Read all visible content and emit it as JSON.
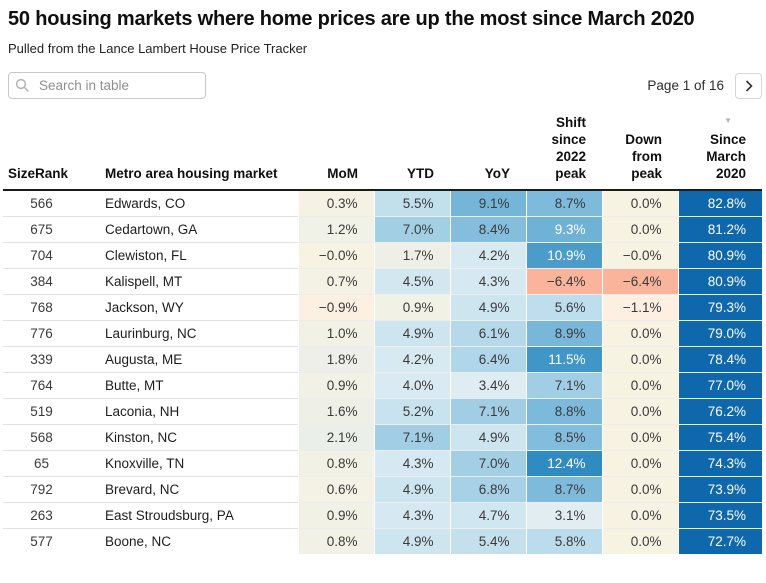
{
  "header": {
    "title": "50 housing markets where home prices are up the most since March 2020",
    "subtitle": "Pulled from the Lance Lambert House Price Tracker"
  },
  "toolbar": {
    "search_placeholder": "Search in table",
    "search_value": "",
    "pagination": "Page 1 of 16",
    "next_button": "next-page"
  },
  "table": {
    "columns": [
      {
        "id": "rank",
        "label": "SizeRank"
      },
      {
        "id": "metro",
        "label": "Metro area housing market"
      },
      {
        "id": "mom",
        "label": "MoM"
      },
      {
        "id": "ytd",
        "label": "YTD"
      },
      {
        "id": "yoy",
        "label": "YoY"
      },
      {
        "id": "shift",
        "label": "Shift since 2022 peak"
      },
      {
        "id": "down",
        "label": "Down from peak"
      },
      {
        "id": "since",
        "label": "Since March 2020",
        "sorted": "desc"
      }
    ],
    "rows": [
      {
        "rank": "566",
        "metro": "Edwards, CO",
        "cells": [
          {
            "t": "0.3%",
            "v": 0.3
          },
          {
            "t": "5.5%",
            "v": 5.5
          },
          {
            "t": "9.1%",
            "v": 9.1
          },
          {
            "t": "8.7%",
            "v": 8.7
          },
          {
            "t": "0.0%",
            "v": 0
          },
          {
            "t": "82.8%",
            "v": 82.8
          }
        ]
      },
      {
        "rank": "675",
        "metro": "Cedartown, GA",
        "cells": [
          {
            "t": "1.2%",
            "v": 1.2
          },
          {
            "t": "7.0%",
            "v": 7.0
          },
          {
            "t": "8.4%",
            "v": 8.4
          },
          {
            "t": "9.3%",
            "v": 9.3
          },
          {
            "t": "0.0%",
            "v": 0
          },
          {
            "t": "81.2%",
            "v": 81.2
          }
        ]
      },
      {
        "rank": "704",
        "metro": "Clewiston, FL",
        "cells": [
          {
            "t": "−0.0%",
            "v": -0.02
          },
          {
            "t": "1.7%",
            "v": 1.7
          },
          {
            "t": "4.2%",
            "v": 4.2
          },
          {
            "t": "10.9%",
            "v": 10.9
          },
          {
            "t": "−0.0%",
            "v": -0.02
          },
          {
            "t": "80.9%",
            "v": 80.9
          }
        ]
      },
      {
        "rank": "384",
        "metro": "Kalispell, MT",
        "cells": [
          {
            "t": "0.7%",
            "v": 0.7
          },
          {
            "t": "4.5%",
            "v": 4.5
          },
          {
            "t": "4.3%",
            "v": 4.3
          },
          {
            "t": "−6.4%",
            "v": -6.4
          },
          {
            "t": "−6.4%",
            "v": -6.4
          },
          {
            "t": "80.9%",
            "v": 80.9
          }
        ]
      },
      {
        "rank": "768",
        "metro": "Jackson, WY",
        "cells": [
          {
            "t": "−0.9%",
            "v": -0.9
          },
          {
            "t": "0.9%",
            "v": 0.9
          },
          {
            "t": "4.9%",
            "v": 4.9
          },
          {
            "t": "5.6%",
            "v": 5.6
          },
          {
            "t": "−1.1%",
            "v": -1.1
          },
          {
            "t": "79.3%",
            "v": 79.3
          }
        ]
      },
      {
        "rank": "776",
        "metro": "Laurinburg, NC",
        "cells": [
          {
            "t": "1.0%",
            "v": 1.0
          },
          {
            "t": "4.9%",
            "v": 4.9
          },
          {
            "t": "6.1%",
            "v": 6.1
          },
          {
            "t": "8.9%",
            "v": 8.9
          },
          {
            "t": "0.0%",
            "v": 0
          },
          {
            "t": "79.0%",
            "v": 79.0
          }
        ]
      },
      {
        "rank": "339",
        "metro": "Augusta, ME",
        "cells": [
          {
            "t": "1.8%",
            "v": 1.8
          },
          {
            "t": "4.2%",
            "v": 4.2
          },
          {
            "t": "6.4%",
            "v": 6.4
          },
          {
            "t": "11.5%",
            "v": 11.5
          },
          {
            "t": "0.0%",
            "v": 0
          },
          {
            "t": "78.4%",
            "v": 78.4
          }
        ]
      },
      {
        "rank": "764",
        "metro": "Butte, MT",
        "cells": [
          {
            "t": "0.9%",
            "v": 0.9
          },
          {
            "t": "4.0%",
            "v": 4.0
          },
          {
            "t": "3.4%",
            "v": 3.4
          },
          {
            "t": "7.1%",
            "v": 7.1
          },
          {
            "t": "0.0%",
            "v": 0
          },
          {
            "t": "77.0%",
            "v": 77.0
          }
        ]
      },
      {
        "rank": "519",
        "metro": "Laconia, NH",
        "cells": [
          {
            "t": "1.6%",
            "v": 1.6
          },
          {
            "t": "5.2%",
            "v": 5.2
          },
          {
            "t": "7.1%",
            "v": 7.1
          },
          {
            "t": "8.8%",
            "v": 8.8
          },
          {
            "t": "0.0%",
            "v": 0
          },
          {
            "t": "76.2%",
            "v": 76.2
          }
        ]
      },
      {
        "rank": "568",
        "metro": "Kinston, NC",
        "cells": [
          {
            "t": "2.1%",
            "v": 2.1
          },
          {
            "t": "7.1%",
            "v": 7.1
          },
          {
            "t": "4.9%",
            "v": 4.9
          },
          {
            "t": "8.5%",
            "v": 8.5
          },
          {
            "t": "0.0%",
            "v": 0
          },
          {
            "t": "75.4%",
            "v": 75.4
          }
        ]
      },
      {
        "rank": "65",
        "metro": "Knoxville, TN",
        "cells": [
          {
            "t": "0.8%",
            "v": 0.8
          },
          {
            "t": "4.3%",
            "v": 4.3
          },
          {
            "t": "7.0%",
            "v": 7.0
          },
          {
            "t": "12.4%",
            "v": 12.4
          },
          {
            "t": "0.0%",
            "v": 0
          },
          {
            "t": "74.3%",
            "v": 74.3
          }
        ]
      },
      {
        "rank": "792",
        "metro": "Brevard, NC",
        "cells": [
          {
            "t": "0.6%",
            "v": 0.6
          },
          {
            "t": "4.9%",
            "v": 4.9
          },
          {
            "t": "6.8%",
            "v": 6.8
          },
          {
            "t": "8.7%",
            "v": 8.7
          },
          {
            "t": "0.0%",
            "v": 0
          },
          {
            "t": "73.9%",
            "v": 73.9
          }
        ]
      },
      {
        "rank": "263",
        "metro": "East Stroudsburg, PA",
        "cells": [
          {
            "t": "0.9%",
            "v": 0.9
          },
          {
            "t": "4.3%",
            "v": 4.3
          },
          {
            "t": "4.7%",
            "v": 4.7
          },
          {
            "t": "3.1%",
            "v": 3.1
          },
          {
            "t": "0.0%",
            "v": 0
          },
          {
            "t": "73.5%",
            "v": 73.5
          }
        ]
      },
      {
        "rank": "577",
        "metro": "Boone, NC",
        "cells": [
          {
            "t": "0.8%",
            "v": 0.8
          },
          {
            "t": "4.9%",
            "v": 4.9
          },
          {
            "t": "5.4%",
            "v": 5.4
          },
          {
            "t": "5.8%",
            "v": 5.8
          },
          {
            "t": "0.0%",
            "v": 0
          },
          {
            "t": "72.7%",
            "v": 72.7
          }
        ]
      }
    ]
  },
  "heatmap": {
    "stops": [
      [
        -7,
        "#f8ad93"
      ],
      [
        -1,
        "#fdf0e2"
      ],
      [
        0,
        "#f6f3e3"
      ],
      [
        2,
        "#ecefe9"
      ],
      [
        3,
        "#e3edf2"
      ],
      [
        4,
        "#daeaf2"
      ],
      [
        5,
        "#cce4ef"
      ],
      [
        6,
        "#b7daeb"
      ],
      [
        7,
        "#a3cfe5"
      ],
      [
        8,
        "#8fc3e0"
      ],
      [
        9,
        "#77b6d9"
      ],
      [
        10,
        "#5ea8d0"
      ],
      [
        11,
        "#4a9bc9"
      ],
      [
        12,
        "#3690c2"
      ],
      [
        13,
        "#2886bc"
      ]
    ],
    "since_column_color": "#0e68ab",
    "white_text_min": 9.2,
    "dark_text_color": "#3a3a3a",
    "white_text_color": "#ffffff"
  }
}
